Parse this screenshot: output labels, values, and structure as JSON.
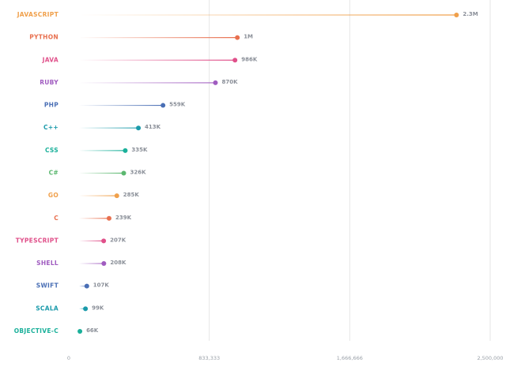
{
  "chart_data": {
    "type": "lollipop",
    "categories": [
      "JAVASCRIPT",
      "PYTHON",
      "JAVA",
      "RUBY",
      "PHP",
      "C++",
      "CSS",
      "C#",
      "GO",
      "C",
      "TYPESCRIPT",
      "SHELL",
      "SWIFT",
      "SCALA",
      "OBJECTIVE-C"
    ],
    "values": [
      2300000,
      1000000,
      986000,
      870000,
      559000,
      413000,
      335000,
      326000,
      285000,
      239000,
      207000,
      208000,
      107000,
      99000,
      66000
    ],
    "value_labels": [
      "2.3M",
      "1M",
      "986K",
      "870K",
      "559K",
      "413K",
      "335K",
      "326K",
      "285K",
      "239K",
      "207K",
      "208K",
      "107K",
      "99K",
      "66K"
    ],
    "colors": [
      "#f0a04b",
      "#e8704f",
      "#e0508a",
      "#a05cc0",
      "#4a6fb5",
      "#1a9aaa",
      "#1ab09a",
      "#5cb870",
      "#f0a04b",
      "#e8704f",
      "#e0508a",
      "#a05cc0",
      "#4a6fb5",
      "#1a9aaa",
      "#1ab09a"
    ],
    "xlim": [
      0,
      2500000
    ],
    "xticks": [
      0,
      {
        "value": 833333,
        "label": "833,333"
      },
      {
        "value": 1666666,
        "label": "1,666,666"
      },
      {
        "value": 2500000,
        "label": "2,500,000"
      }
    ],
    "grid": true
  }
}
